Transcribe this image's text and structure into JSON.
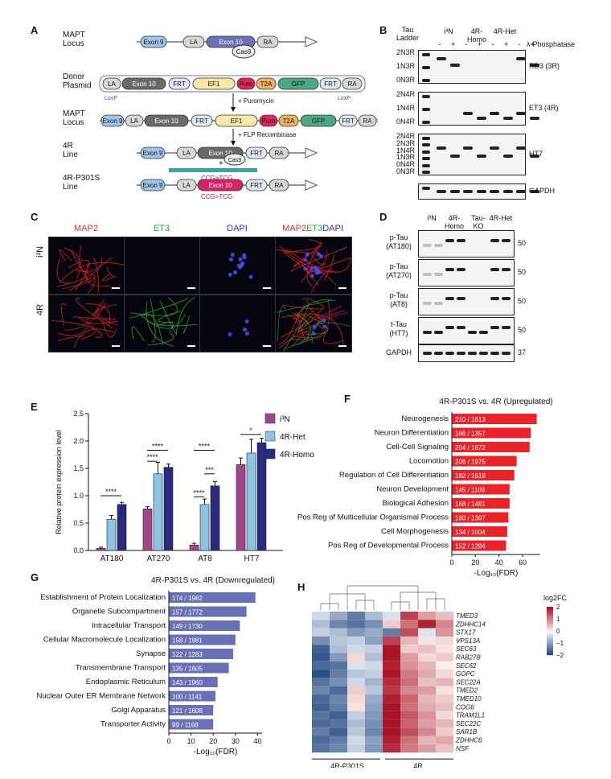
{
  "panels": {
    "A": "A",
    "B": "B",
    "C": "C",
    "D": "D",
    "E": "E",
    "F": "F",
    "G": "G",
    "H": "H"
  },
  "panelA": {
    "rows": [
      {
        "label1": "MAPT",
        "label2": "Locus"
      },
      {
        "label1": "Donor",
        "label2": "Plasmid"
      },
      {
        "label1": "MAPT",
        "label2": "Locus"
      },
      {
        "label1": "4R",
        "label2": "Line"
      },
      {
        "label1": "4R-P301S",
        "label2": "Line"
      }
    ],
    "elements": {
      "exon9": "Exon 9",
      "la": "LA",
      "exon10": "Exon 10",
      "ra": "RA",
      "cas9": "Cas9",
      "frt": "FRT",
      "ef1": "EF1",
      "puro": "Puro",
      "t2a": "T2A",
      "gfp": "GFP",
      "loxp": "LoxP"
    },
    "annotations": {
      "puromycin": "+ Puromycin",
      "flp": "+ FLP Recombinase",
      "mutation": "CCG>TCG",
      "plus": "+"
    }
  },
  "panelB": {
    "tau_ladder": "Tau Ladder",
    "columns": [
      "i³N",
      "4R-Homo",
      "4R-Het"
    ],
    "phosphatase": "λ-Phosphatase",
    "signs": [
      "-",
      "+",
      "-",
      "+",
      "-",
      "+",
      "-",
      "+"
    ],
    "blots": [
      {
        "name": "RD3 (3R)",
        "ladder": [
          "2N3R",
          "1N3R",
          "0N3R"
        ]
      },
      {
        "name": "ET3 (4R)",
        "ladder": [
          "2N4R",
          "1N4R",
          "0N4R"
        ]
      },
      {
        "name": "HT7",
        "ladder": [
          "2N4R",
          "2N3R",
          "1N4R",
          "1N3R",
          "0N4R",
          "0N3R"
        ]
      },
      {
        "name": "GAPDH",
        "ladder": []
      }
    ]
  },
  "panelC": {
    "columns": [
      "MAP2",
      "ET3",
      "DAPI"
    ],
    "merge": {
      "a": "MAP2",
      "b": "ET3",
      "c": "DAPI"
    },
    "rows": [
      "i³N",
      "4R"
    ],
    "colors": {
      "map2": "#e03030",
      "et3": "#2aa52a",
      "dapi": "#3030d0"
    }
  },
  "panelD": {
    "columns": [
      "i³N",
      "4R-Homo",
      "Tau-KO",
      "4R-Het"
    ],
    "blots": [
      {
        "l1": "p-Tau",
        "l2": "(AT180)",
        "mw": "50"
      },
      {
        "l1": "p-Tau",
        "l2": "(AT270)",
        "mw": "50"
      },
      {
        "l1": "p-Tau",
        "l2": "(AT8)",
        "mw": "50"
      },
      {
        "l1": "t-Tau",
        "l2": "(HT7)",
        "mw": "50"
      },
      {
        "l1": "GAPDH",
        "l2": "",
        "mw": "37"
      }
    ]
  },
  "panelE": {
    "ylabel": "Relative protein expression level",
    "legend": [
      "i³N",
      "4R-Het",
      "4R-Homo"
    ],
    "colors": [
      "#a2468c",
      "#8fc3e4",
      "#2c2a80"
    ],
    "sig": [
      "****",
      "****",
      "****",
      "****",
      "****",
      "***",
      "*"
    ]
  },
  "panelF": {
    "title": "4R-P301S vs. 4R (Upregulated)",
    "xlabel": "-Log₁₀(FDR)",
    "color": "#e8242a"
  },
  "panelG": {
    "title": "4R-P301S vs. 4R (Downregulated)",
    "xlabel": "-Log₁₀(FDR)",
    "color": "#6a70b6"
  },
  "panelH": {
    "genes": [
      "TMED3",
      "ZDHHC14",
      "STX17",
      "VPS13A",
      "SEC63",
      "RAB27B",
      "SEC62",
      "GOPC",
      "SEC22A",
      "TMED2",
      "TMED10",
      "COG6",
      "TRAM1L1",
      "SEC22C",
      "SAR1B",
      "ZDHHC6",
      "NSF"
    ],
    "groups": [
      "4R-P301S",
      "4R"
    ],
    "legend_title": "log2FC",
    "legend_ticks": [
      "2",
      "1",
      "0",
      "−1",
      "−2"
    ]
  },
  "chart_data": [
    {
      "type": "bar",
      "categories": [
        "AT180",
        "AT270",
        "AT8",
        "HT7"
      ],
      "series": [
        {
          "name": "i³N",
          "values": [
            0.04,
            0.76,
            0.1,
            1.57
          ]
        },
        {
          "name": "4R-Het",
          "values": [
            0.57,
            1.4,
            0.84,
            1.78
          ]
        },
        {
          "name": "4R-Homo",
          "values": [
            0.84,
            1.52,
            1.18,
            1.97
          ]
        }
      ],
      "errors": [
        [
          0.02,
          0.04,
          0.03,
          0.12
        ],
        [
          0.07,
          0.21,
          0.1,
          0.25
        ],
        [
          0.04,
          0.06,
          0.08,
          0.08
        ]
      ],
      "xlabel": "",
      "ylabel": "Relative protein expression level",
      "ylim": [
        0,
        2.5
      ],
      "yticks": [
        "0.0",
        "0.5",
        "1.0",
        "1.5",
        "2.0",
        "2.5"
      ]
    },
    {
      "type": "bar",
      "orientation": "horizontal",
      "title": "4R-P301S vs. 4R (Upregulated)",
      "categories": [
        "Neurogenesis",
        "Neuron Differentiation",
        "Cell-Cell Signaling",
        "Locomotion",
        "Regulation of Cell Differentiation",
        "Neuron Development",
        "Biological Adhesion",
        "Pos Reg of Multicellular Organismal Process",
        "Cell Morphogenesis",
        "Pos Reg of Developmental Process"
      ],
      "values": [
        72,
        67,
        66,
        55,
        53,
        49,
        49,
        48,
        47,
        46
      ],
      "data_labels": [
        "210 / 1613",
        "186 / 1357",
        "204 / 1672",
        "206 / 1975",
        "182 / 1618",
        "145 / 1109",
        "168 / 1481",
        "160 / 1397",
        "134 / 1004",
        "152 / 1284"
      ],
      "xlabel": "-Log₁₀(FDR)",
      "xlim": [
        0,
        75
      ],
      "xticks": [
        "0",
        "20",
        "40",
        "60"
      ]
    },
    {
      "type": "bar",
      "orientation": "horizontal",
      "title": "4R-P301S vs. 4R (Downregulated)",
      "categories": [
        "Establishment of Protein Localization",
        "Organelle Subcompartment",
        "Intracellular Transport",
        "Cellular Macromolecule Localization",
        "Synapse",
        "Transmembrane Transport",
        "Endoplasmic Reticulum",
        "Nuclear Outer ER Membrane Network",
        "Golgi Apparatus",
        "Transporter Activity"
      ],
      "values": [
        39,
        35,
        32,
        30,
        29,
        27,
        22,
        21,
        20,
        20
      ],
      "data_labels": [
        "174 / 1982",
        "157 / 1772",
        "149 / 1730",
        "158 / 1981",
        "122 / 1283",
        "135 / 1605",
        "143 / 1960",
        "100 / 1141",
        "121 / 1608",
        "99 / 1168"
      ],
      "xlabel": "-Log₁₀(FDR)",
      "xlim": [
        0,
        42
      ],
      "xticks": [
        "0",
        "10",
        "20",
        "30",
        "40"
      ]
    },
    {
      "type": "heatmap",
      "rows": [
        "TMED3",
        "ZDHHC14",
        "STX17",
        "VPS13A",
        "SEC63",
        "RAB27B",
        "SEC62",
        "GOPC",
        "SEC22A",
        "TMED2",
        "TMED10",
        "COG6",
        "TRAM1L1",
        "SEC22C",
        "SAR1B",
        "ZDHHC6",
        "NSF"
      ],
      "columns": [
        "4R-P301S",
        "4R-P301S",
        "4R-P301S",
        "4R-P301S",
        "4R",
        "4R",
        "4R",
        "4R"
      ],
      "values": [
        [
          -0.3,
          -0.8,
          -1.3,
          -0.6,
          -0.2,
          1.6,
          0.8,
          0.5
        ],
        [
          -0.6,
          -1.2,
          -1.4,
          -1.1,
          0.4,
          1.2,
          1.9,
          1.0
        ],
        [
          -0.4,
          -0.6,
          -1.0,
          -0.8,
          -1.3,
          1.5,
          -0.2,
          0.9
        ],
        [
          -1.1,
          -0.5,
          -0.4,
          -0.9,
          1.6,
          0.6,
          0.2,
          0.3
        ],
        [
          -1.6,
          -0.6,
          -0.3,
          -0.4,
          2.0,
          0.4,
          0.5,
          0.2
        ],
        [
          -1.7,
          -1.0,
          0.3,
          -0.6,
          2.1,
          0.8,
          0.3,
          0.4
        ],
        [
          -1.5,
          -1.4,
          -0.2,
          -0.3,
          1.9,
          0.9,
          0.6,
          0.1
        ],
        [
          -1.8,
          -1.3,
          -0.5,
          -0.4,
          2.0,
          1.1,
          0.7,
          0.3
        ],
        [
          -1.4,
          -1.1,
          -0.3,
          -0.7,
          1.8,
          1.2,
          0.5,
          0.6
        ],
        [
          -1.2,
          -1.5,
          0.4,
          -0.5,
          1.7,
          1.0,
          0.8,
          0.2
        ],
        [
          -1.5,
          -1.2,
          0.3,
          -0.8,
          1.9,
          1.3,
          0.6,
          0.4
        ],
        [
          -1.6,
          -1.3,
          0.2,
          -0.9,
          2.0,
          1.2,
          0.7,
          0.5
        ],
        [
          -1.4,
          -1.6,
          -0.4,
          -1.0,
          2.1,
          1.4,
          0.9,
          0.3
        ],
        [
          -1.5,
          -1.4,
          -0.6,
          -1.1,
          2.0,
          1.3,
          0.8,
          0.6
        ],
        [
          -1.3,
          -1.6,
          -0.5,
          -1.2,
          2.2,
          1.5,
          1.0,
          0.4
        ],
        [
          -1.5,
          -1.3,
          -0.3,
          -0.9,
          1.9,
          1.2,
          0.6,
          0.7
        ],
        [
          -1.4,
          -1.2,
          -0.4,
          -1.0,
          1.8,
          1.1,
          0.8,
          0.5
        ]
      ],
      "colorbar": {
        "min": -2,
        "max": 2,
        "title": "log2FC"
      }
    }
  ]
}
